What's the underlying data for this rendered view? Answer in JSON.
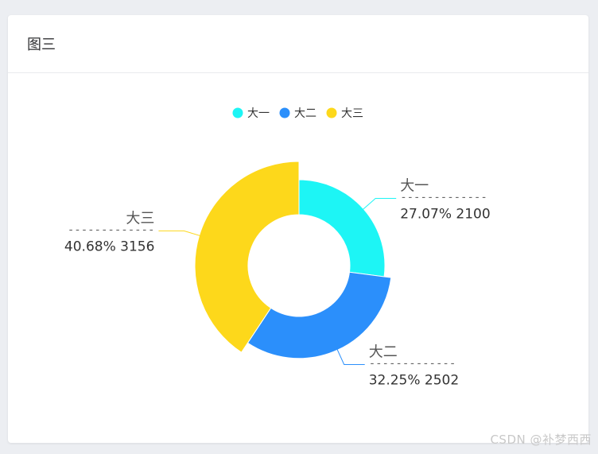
{
  "card": {
    "title": "图三"
  },
  "chart_data": {
    "type": "pie",
    "variant": "rose-donut",
    "categories": [
      "大一",
      "大二",
      "大三"
    ],
    "values": [
      2100,
      2502,
      3156
    ],
    "percent_labels": [
      "27.07%",
      "32.25%",
      "40.68%"
    ],
    "colors": [
      "#1df5f5",
      "#2b8ffb",
      "#fdd81b"
    ],
    "legend": {
      "position": "top-center",
      "items": [
        "大一",
        "大二",
        "大三"
      ]
    },
    "label_divider": "-------------",
    "title": "",
    "xlabel": "",
    "ylabel": ""
  },
  "watermark": "CSDN @补梦西西"
}
